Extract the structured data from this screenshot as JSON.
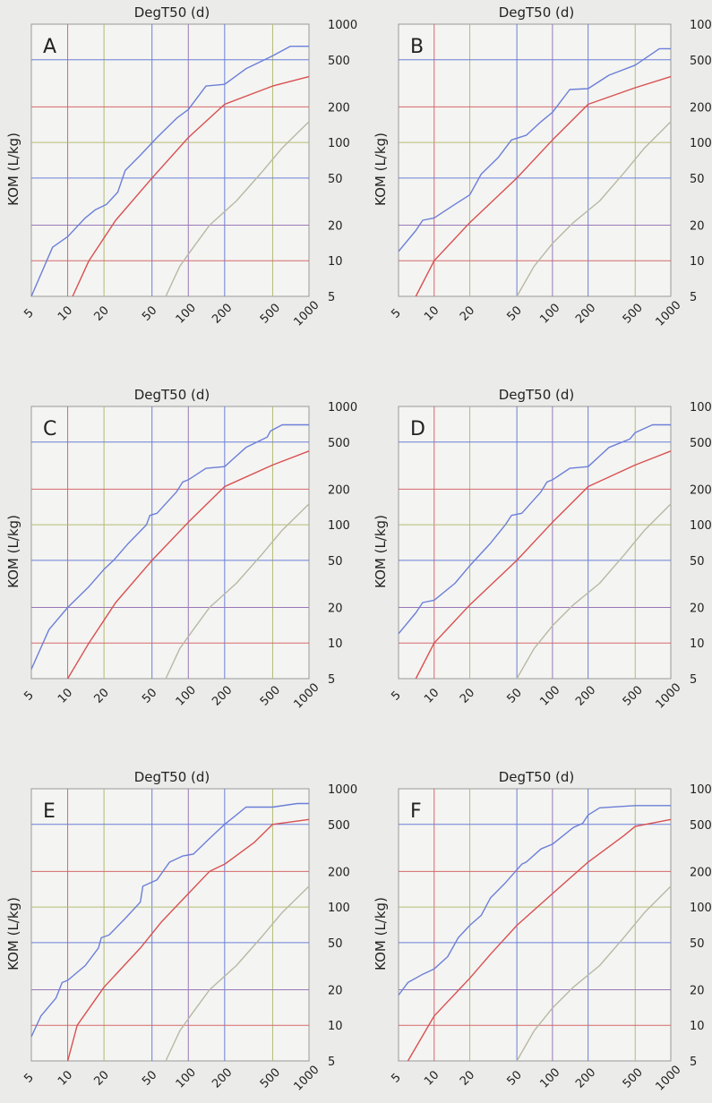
{
  "figure": {
    "panel_count": 6
  },
  "colors": {
    "background": "#ebebe9",
    "plot_bg": "#f4f4f2",
    "grid_blue": "#6b7fd8",
    "grid_red": "#d46a6a",
    "grid_olive": "#b4bc74",
    "grid_purple": "#9a78b8",
    "series_blue": "#6b7fd8",
    "series_red": "#d85050",
    "series_gray": "#b8b8a4",
    "text": "#222222"
  },
  "chart_data": [
    {
      "type": "line",
      "panel_label": "A",
      "title": "DegT50 (d)",
      "xlabel": "",
      "ylabel": "KOM (L/kg)",
      "x_scale": "log",
      "y_scale": "log",
      "xlim": [
        5,
        1000
      ],
      "ylim": [
        5,
        1000
      ],
      "xticks": [
        "5",
        "10",
        "20",
        "50",
        "100",
        "200",
        "500",
        "1000"
      ],
      "yticks": [
        "5",
        "10",
        "20",
        "50",
        "100",
        "200",
        "500",
        "1000"
      ],
      "grid": true,
      "legend": "none",
      "series": [
        {
          "color": "blue",
          "points": [
            [
              5,
              5
            ],
            [
              7.5,
              13
            ],
            [
              10,
              16
            ],
            [
              14,
              23
            ],
            [
              17,
              27
            ],
            [
              21,
              30
            ],
            [
              26,
              38
            ],
            [
              30,
              58
            ],
            [
              40,
              78
            ],
            [
              55,
              110
            ],
            [
              80,
              160
            ],
            [
              100,
              190
            ],
            [
              140,
              300
            ],
            [
              200,
              310
            ],
            [
              300,
              420
            ],
            [
              500,
              540
            ],
            [
              700,
              650
            ],
            [
              1000,
              650
            ]
          ]
        },
        {
          "color": "red",
          "points": [
            [
              11,
              5
            ],
            [
              15,
              10
            ],
            [
              25,
              22
            ],
            [
              50,
              50
            ],
            [
              100,
              110
            ],
            [
              200,
              210
            ],
            [
              500,
              300
            ],
            [
              1000,
              360
            ]
          ]
        },
        {
          "color": "gray",
          "points": [
            [
              65,
              5
            ],
            [
              85,
              9
            ],
            [
              110,
              13
            ],
            [
              150,
              20
            ],
            [
              250,
              32
            ],
            [
              400,
              55
            ],
            [
              600,
              90
            ],
            [
              1000,
              150
            ]
          ]
        }
      ]
    },
    {
      "type": "line",
      "panel_label": "B",
      "title": "DegT50 (d)",
      "xlabel": "",
      "ylabel": "KOM (L/kg)",
      "x_scale": "log",
      "y_scale": "log",
      "xlim": [
        5,
        1000
      ],
      "ylim": [
        5,
        1000
      ],
      "xticks": [
        "5",
        "10",
        "20",
        "50",
        "100",
        "200",
        "500",
        "1000"
      ],
      "yticks": [
        "5",
        "10",
        "20",
        "50",
        "100",
        "200",
        "500",
        "1000"
      ],
      "grid": true,
      "legend": "none",
      "series": [
        {
          "color": "blue",
          "points": [
            [
              5,
              12
            ],
            [
              7,
              18
            ],
            [
              8,
              22
            ],
            [
              10,
              23
            ],
            [
              15,
              30
            ],
            [
              20,
              36
            ],
            [
              25,
              54
            ],
            [
              35,
              75
            ],
            [
              45,
              105
            ],
            [
              60,
              115
            ],
            [
              80,
              150
            ],
            [
              100,
              180
            ],
            [
              140,
              280
            ],
            [
              200,
              285
            ],
            [
              300,
              370
            ],
            [
              500,
              450
            ],
            [
              800,
              620
            ],
            [
              1000,
              620
            ]
          ]
        },
        {
          "color": "red",
          "points": [
            [
              7,
              5
            ],
            [
              10,
              10
            ],
            [
              20,
              21
            ],
            [
              50,
              50
            ],
            [
              100,
              105
            ],
            [
              200,
              210
            ],
            [
              500,
              290
            ],
            [
              1000,
              360
            ]
          ]
        },
        {
          "color": "gray",
          "points": [
            [
              50,
              5
            ],
            [
              70,
              9
            ],
            [
              100,
              14
            ],
            [
              150,
              21
            ],
            [
              250,
              32
            ],
            [
              400,
              55
            ],
            [
              600,
              90
            ],
            [
              1000,
              150
            ]
          ]
        }
      ]
    },
    {
      "type": "line",
      "panel_label": "C",
      "title": "DegT50 (d)",
      "xlabel": "",
      "ylabel": "KOM (L/kg)",
      "x_scale": "log",
      "y_scale": "log",
      "xlim": [
        5,
        1000
      ],
      "ylim": [
        5,
        1000
      ],
      "xticks": [
        "5",
        "10",
        "20",
        "50",
        "100",
        "200",
        "500",
        "1000"
      ],
      "yticks": [
        "5",
        "10",
        "20",
        "50",
        "100",
        "200",
        "500",
        "1000"
      ],
      "grid": true,
      "legend": "none",
      "series": [
        {
          "color": "blue",
          "points": [
            [
              5,
              6
            ],
            [
              7,
              13
            ],
            [
              10,
              20
            ],
            [
              15,
              30
            ],
            [
              20,
              42
            ],
            [
              24,
              50
            ],
            [
              32,
              70
            ],
            [
              45,
              100
            ],
            [
              48,
              120
            ],
            [
              55,
              125
            ],
            [
              80,
              190
            ],
            [
              90,
              230
            ],
            [
              100,
              240
            ],
            [
              140,
              300
            ],
            [
              200,
              310
            ],
            [
              300,
              450
            ],
            [
              450,
              550
            ],
            [
              480,
              620
            ],
            [
              600,
              700
            ],
            [
              800,
              700
            ],
            [
              1000,
              700
            ]
          ]
        },
        {
          "color": "red",
          "points": [
            [
              10,
              5
            ],
            [
              15,
              10
            ],
            [
              25,
              22
            ],
            [
              50,
              50
            ],
            [
              100,
              105
            ],
            [
              200,
              210
            ],
            [
              500,
              320
            ],
            [
              1000,
              420
            ]
          ]
        },
        {
          "color": "gray",
          "points": [
            [
              65,
              5
            ],
            [
              85,
              9
            ],
            [
              110,
              13
            ],
            [
              150,
              20
            ],
            [
              250,
              32
            ],
            [
              400,
              55
            ],
            [
              600,
              90
            ],
            [
              1000,
              150
            ]
          ]
        }
      ]
    },
    {
      "type": "line",
      "panel_label": "D",
      "title": "DegT50 (d)",
      "xlabel": "",
      "ylabel": "KOM (L/kg)",
      "x_scale": "log",
      "y_scale": "log",
      "xlim": [
        5,
        1000
      ],
      "ylim": [
        5,
        1000
      ],
      "xticks": [
        "5",
        "10",
        "20",
        "50",
        "100",
        "200",
        "500",
        "1000"
      ],
      "yticks": [
        "5",
        "10",
        "20",
        "50",
        "100",
        "200",
        "500",
        "1000"
      ],
      "grid": true,
      "legend": "none",
      "series": [
        {
          "color": "blue",
          "points": [
            [
              5,
              12
            ],
            [
              7,
              18
            ],
            [
              8,
              22
            ],
            [
              10,
              23
            ],
            [
              15,
              32
            ],
            [
              20,
              45
            ],
            [
              30,
              70
            ],
            [
              40,
              100
            ],
            [
              45,
              120
            ],
            [
              55,
              125
            ],
            [
              80,
              190
            ],
            [
              90,
              230
            ],
            [
              100,
              240
            ],
            [
              140,
              300
            ],
            [
              200,
              310
            ],
            [
              300,
              450
            ],
            [
              450,
              530
            ],
            [
              500,
              600
            ],
            [
              700,
              700
            ],
            [
              1000,
              700
            ]
          ]
        },
        {
          "color": "red",
          "points": [
            [
              7,
              5
            ],
            [
              10,
              10
            ],
            [
              20,
              21
            ],
            [
              50,
              50
            ],
            [
              100,
              105
            ],
            [
              200,
              210
            ],
            [
              500,
              320
            ],
            [
              1000,
              420
            ]
          ]
        },
        {
          "color": "gray",
          "points": [
            [
              50,
              5
            ],
            [
              70,
              9
            ],
            [
              100,
              14
            ],
            [
              150,
              21
            ],
            [
              250,
              32
            ],
            [
              400,
              55
            ],
            [
              600,
              90
            ],
            [
              1000,
              150
            ]
          ]
        }
      ]
    },
    {
      "type": "line",
      "panel_label": "E",
      "title": "DegT50 (d)",
      "xlabel": "",
      "ylabel": "KOM (L/kg)",
      "x_scale": "log",
      "y_scale": "log",
      "xlim": [
        5,
        1000
      ],
      "ylim": [
        5,
        1000
      ],
      "xticks": [
        "5",
        "10",
        "20",
        "50",
        "100",
        "200",
        "500",
        "1000"
      ],
      "yticks": [
        "5",
        "10",
        "20",
        "50",
        "100",
        "200",
        "500",
        "1000"
      ],
      "grid": true,
      "legend": "none",
      "series": [
        {
          "color": "blue",
          "points": [
            [
              5,
              8
            ],
            [
              6,
              12
            ],
            [
              8,
              17
            ],
            [
              9,
              23
            ],
            [
              10,
              24
            ],
            [
              14,
              32
            ],
            [
              18,
              45
            ],
            [
              19,
              55
            ],
            [
              22,
              58
            ],
            [
              30,
              80
            ],
            [
              40,
              110
            ],
            [
              42,
              150
            ],
            [
              55,
              170
            ],
            [
              70,
              240
            ],
            [
              90,
              270
            ],
            [
              110,
              280
            ],
            [
              150,
              380
            ],
            [
              200,
              500
            ],
            [
              250,
              600
            ],
            [
              300,
              700
            ],
            [
              500,
              700
            ],
            [
              800,
              750
            ],
            [
              1000,
              750
            ]
          ]
        },
        {
          "color": "red",
          "points": [
            [
              10,
              5
            ],
            [
              12,
              10
            ],
            [
              20,
              21
            ],
            [
              40,
              45
            ],
            [
              60,
              75
            ],
            [
              100,
              130
            ],
            [
              150,
              200
            ],
            [
              200,
              230
            ],
            [
              350,
              350
            ],
            [
              500,
              500
            ],
            [
              1000,
              550
            ]
          ]
        },
        {
          "color": "gray",
          "points": [
            [
              65,
              5
            ],
            [
              85,
              9
            ],
            [
              110,
              13
            ],
            [
              150,
              20
            ],
            [
              250,
              32
            ],
            [
              400,
              55
            ],
            [
              600,
              90
            ],
            [
              1000,
              150
            ]
          ]
        }
      ]
    },
    {
      "type": "line",
      "panel_label": "F",
      "title": "DegT50 (d)",
      "xlabel": "",
      "ylabel": "KOM (L/kg)",
      "x_scale": "log",
      "y_scale": "log",
      "xlim": [
        5,
        1000
      ],
      "ylim": [
        5,
        1000
      ],
      "xticks": [
        "5",
        "10",
        "20",
        "50",
        "100",
        "200",
        "500",
        "1000"
      ],
      "yticks": [
        "5",
        "10",
        "20",
        "50",
        "100",
        "200",
        "500",
        "1000"
      ],
      "grid": true,
      "legend": "none",
      "series": [
        {
          "color": "blue",
          "points": [
            [
              5,
              18
            ],
            [
              6,
              23
            ],
            [
              8,
              27
            ],
            [
              10,
              30
            ],
            [
              13,
              38
            ],
            [
              16,
              55
            ],
            [
              20,
              70
            ],
            [
              25,
              85
            ],
            [
              30,
              120
            ],
            [
              40,
              160
            ],
            [
              55,
              230
            ],
            [
              60,
              240
            ],
            [
              80,
              310
            ],
            [
              100,
              340
            ],
            [
              150,
              470
            ],
            [
              180,
              510
            ],
            [
              200,
              600
            ],
            [
              250,
              690
            ],
            [
              500,
              720
            ],
            [
              1000,
              720
            ]
          ]
        },
        {
          "color": "red",
          "points": [
            [
              6,
              5
            ],
            [
              10,
              12
            ],
            [
              20,
              25
            ],
            [
              30,
              40
            ],
            [
              50,
              70
            ],
            [
              100,
              130
            ],
            [
              200,
              240
            ],
            [
              400,
              400
            ],
            [
              500,
              480
            ],
            [
              1000,
              550
            ]
          ]
        },
        {
          "color": "gray",
          "points": [
            [
              50,
              5
            ],
            [
              70,
              9
            ],
            [
              100,
              14
            ],
            [
              150,
              21
            ],
            [
              250,
              32
            ],
            [
              400,
              55
            ],
            [
              600,
              90
            ],
            [
              1000,
              150
            ]
          ]
        }
      ]
    }
  ]
}
